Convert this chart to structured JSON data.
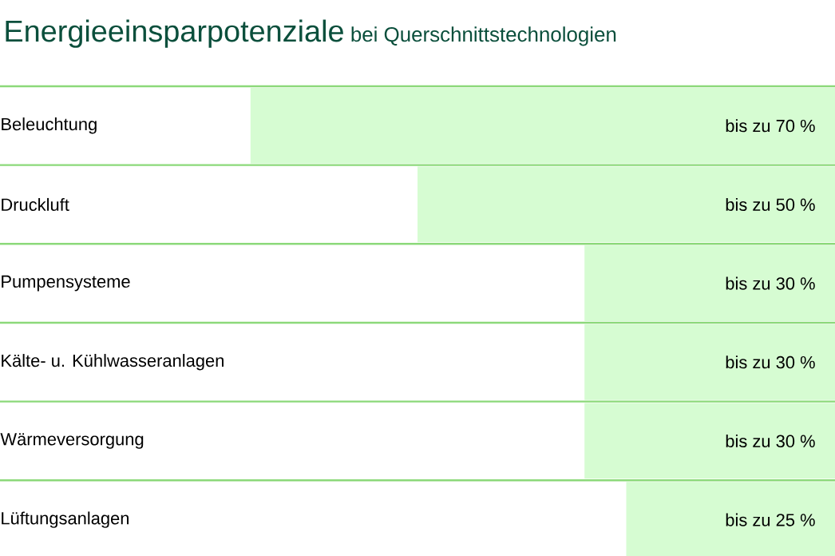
{
  "chart_data": {
    "type": "bar",
    "orientation": "horizontal",
    "title": "Energieeinsparpotenziale",
    "subtitle": "bei Querschnittstechnologien",
    "categories": [
      "Beleuchtung",
      "Druckluft",
      "Pumpensysteme",
      "Kälte- u. Kühlwasseranlagen",
      "Wärmeversorgung",
      "Lüftungsanlagen"
    ],
    "values": [
      70,
      50,
      30,
      30,
      30,
      25
    ],
    "value_labels": [
      "bis zu 70 %",
      "bis zu 50 %",
      "bis zu 30 %",
      "bis zu 30 %",
      "bis zu 30 %",
      "bis zu 25 %"
    ],
    "color": "#d6fcd2",
    "xlim": [
      100,
      0
    ],
    "grid": "y"
  }
}
